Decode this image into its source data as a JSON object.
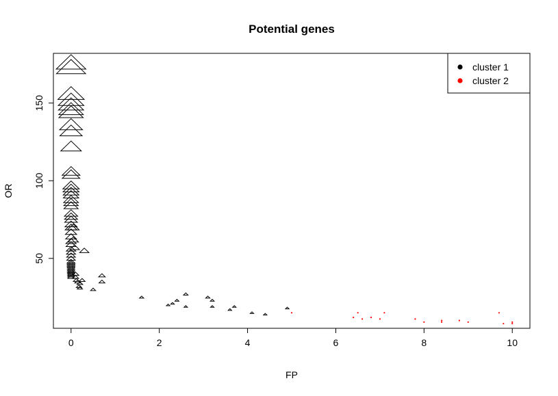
{
  "chart_data": {
    "type": "scatter",
    "title": "Potential genes",
    "xlabel": "FP",
    "ylabel": "OR",
    "xlim": [
      -0.4,
      10.4
    ],
    "ylim": [
      5,
      182
    ],
    "x_ticks": [
      0,
      2,
      4,
      6,
      8,
      10
    ],
    "y_ticks": [
      50,
      100,
      150
    ],
    "x_tick_labels": [
      "0",
      "2",
      "4",
      "6",
      "8",
      "10"
    ],
    "y_tick_labels": [
      "50",
      "100",
      "150"
    ],
    "legend": {
      "position": "top-right",
      "entries": [
        {
          "label": "cluster 1",
          "color": "#000000"
        },
        {
          "label": "cluster 2",
          "color": "#ff0000"
        }
      ]
    },
    "marker_note": "triangle size scales with OR",
    "series": [
      {
        "name": "cluster 1",
        "color": "#000000",
        "x": [
          0,
          0,
          0,
          0,
          0,
          0,
          0,
          0,
          0,
          0,
          0,
          0,
          0,
          0,
          0,
          0,
          0,
          0,
          0,
          0,
          0,
          0,
          0,
          0,
          0,
          0,
          0,
          0,
          0,
          0,
          0,
          0,
          0,
          0,
          0,
          0,
          0,
          0,
          0,
          0,
          0,
          0,
          0,
          0,
          0,
          0,
          0,
          0,
          0.05,
          0.05,
          0.08,
          0.1,
          0.1,
          0.12,
          0.15,
          0.18,
          0.2,
          0.2,
          0.25,
          0.3,
          0.5,
          0.7,
          0.7,
          1.6,
          2.2,
          2.3,
          2.4,
          2.6,
          2.6,
          3.1,
          3.2,
          3.2,
          3.6,
          3.7,
          4.1,
          4.4,
          4.9
        ],
        "y": [
          176,
          173,
          156,
          152,
          149,
          146,
          144,
          136,
          132,
          122,
          106,
          104,
          97,
          95,
          93,
          91,
          88,
          86,
          84,
          79,
          77,
          75,
          72,
          70,
          67,
          64,
          61,
          59,
          56,
          54,
          52,
          50,
          48,
          47,
          46,
          45,
          44,
          43,
          43,
          42,
          42,
          41,
          41,
          40,
          40,
          39,
          39,
          38,
          70,
          62,
          57,
          40,
          38,
          36,
          35,
          32,
          31,
          34,
          36,
          55,
          30,
          39,
          35,
          25,
          20,
          21,
          23,
          27,
          19,
          25,
          23,
          19,
          17,
          19,
          15,
          14,
          18
        ],
        "marker": "triangle"
      },
      {
        "name": "cluster 2",
        "color": "#ff0000",
        "x": [
          5.0,
          6.4,
          6.5,
          6.6,
          6.8,
          7.0,
          7.1,
          7.8,
          8.0,
          8.4,
          8.4,
          8.8,
          9.0,
          9.7,
          9.8,
          10.0,
          10.0
        ],
        "y": [
          15,
          12,
          15,
          11,
          12,
          11,
          15,
          11,
          9,
          10,
          9,
          10,
          9,
          15,
          8,
          9,
          8
        ],
        "marker": "dot"
      }
    ]
  }
}
